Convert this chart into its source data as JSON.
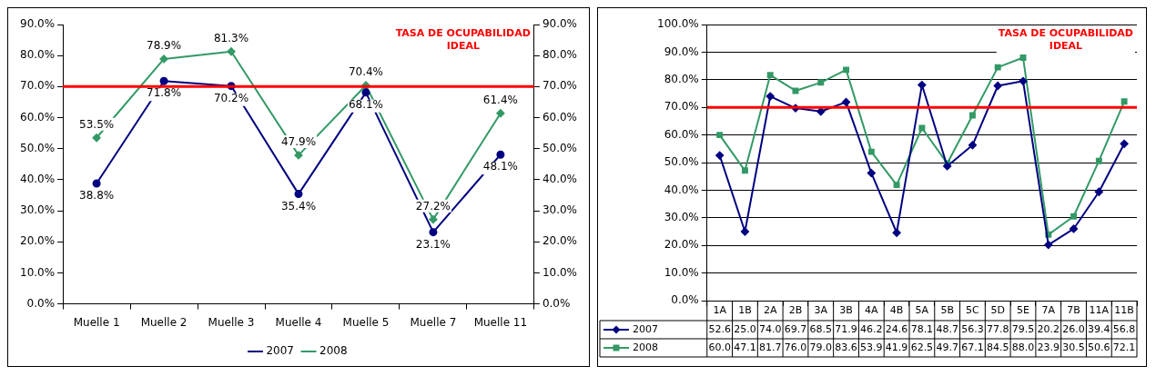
{
  "chart_data": [
    {
      "type": "line",
      "categories": [
        "Muelle 1",
        "Muelle 2",
        "Muelle 3",
        "Muelle 4",
        "Muelle 5",
        "Muelle 7",
        "Muelle 11"
      ],
      "series": [
        {
          "name": "2007",
          "color": "#000080",
          "marker": "circle",
          "values": [
            38.8,
            71.8,
            70.2,
            35.4,
            68.1,
            23.1,
            48.1
          ],
          "value_labels": [
            "38.8%",
            "71.8%",
            "70.2%",
            "35.4%",
            "68.1%",
            "23.1%",
            "48.1%"
          ]
        },
        {
          "name": "2008",
          "color": "#339966",
          "marker": "diamond",
          "values": [
            53.5,
            78.9,
            81.3,
            47.9,
            70.4,
            27.2,
            61.4
          ],
          "value_labels": [
            "53.5%",
            "78.9%",
            "81.3%",
            "47.9%",
            "70.4%",
            "27.2%",
            "61.4%"
          ]
        }
      ],
      "ylim": [
        0,
        90
      ],
      "yticks": [
        {
          "value": 0,
          "label": "0.0%"
        },
        {
          "value": 10,
          "label": "10.0%"
        },
        {
          "value": 20,
          "label": "20.0%"
        },
        {
          "value": 30,
          "label": "30.0%"
        },
        {
          "value": 40,
          "label": "40.0%"
        },
        {
          "value": 50,
          "label": "50.0%"
        },
        {
          "value": 60,
          "label": "60.0%"
        },
        {
          "value": 70,
          "label": "70.0%"
        },
        {
          "value": 80,
          "label": "80.0%"
        },
        {
          "value": 90,
          "label": "90.0%"
        }
      ],
      "y2lim": [
        0,
        90
      ],
      "y2ticks": [
        {
          "value": 0,
          "label": "0.0%"
        },
        {
          "value": 10,
          "label": "10.0%"
        },
        {
          "value": 20,
          "label": "20.0%"
        },
        {
          "value": 30,
          "label": "30.0%"
        },
        {
          "value": 40,
          "label": "40.0%"
        },
        {
          "value": 50,
          "label": "50.0%"
        },
        {
          "value": 60,
          "label": "60.0%"
        },
        {
          "value": 70,
          "label": "70.0%"
        },
        {
          "value": 80,
          "label": "80.0%"
        },
        {
          "value": 90,
          "label": "90.0%"
        }
      ],
      "ref_lines": [
        {
          "axis": "y",
          "value": 70,
          "label": "TASA DE OCUPABILIDAD IDEAL",
          "color": "#ff0000"
        }
      ],
      "grid": false,
      "legend": "bottom"
    },
    {
      "type": "line",
      "categories": [
        "1A",
        "1B",
        "2A",
        "2B",
        "3A",
        "3B",
        "4A",
        "4B",
        "5A",
        "5B",
        "5C",
        "5D",
        "5E",
        "7A",
        "7B",
        "11A",
        "11B"
      ],
      "series": [
        {
          "name": "2007",
          "color": "#000080",
          "marker": "diamond",
          "values": [
            52.6,
            25.0,
            74.0,
            69.7,
            68.5,
            71.9,
            46.2,
            24.6,
            78.1,
            48.7,
            56.3,
            77.8,
            79.5,
            20.2,
            26.0,
            39.4,
            56.8
          ],
          "value_labels": [
            "52.6",
            "25.0",
            "74.0",
            "69.7",
            "68.5",
            "71.9",
            "46.2",
            "24.6",
            "78.1",
            "48.7",
            "56.3",
            "77.8",
            "79.5",
            "20.2",
            "26.0",
            "39.4",
            "56.8"
          ]
        },
        {
          "name": "2008",
          "color": "#339966",
          "marker": "square",
          "values": [
            60.0,
            47.1,
            81.7,
            76.0,
            79.0,
            83.6,
            53.9,
            41.9,
            62.5,
            49.7,
            67.1,
            84.5,
            88.0,
            23.9,
            30.5,
            50.6,
            72.1
          ],
          "value_labels": [
            "60.0",
            "47.1",
            "81.7",
            "76.0",
            "79.0",
            "83.6",
            "53.9",
            "41.9",
            "62.5",
            "49.7",
            "67.1",
            "84.5",
            "88.0",
            "23.9",
            "30.5",
            "50.6",
            "72.1"
          ]
        }
      ],
      "ylim": [
        0,
        100
      ],
      "yticks": [
        {
          "value": 0,
          "label": "0.0%"
        },
        {
          "value": 10,
          "label": "10.0%"
        },
        {
          "value": 20,
          "label": "20.0%"
        },
        {
          "value": 30,
          "label": "30.0%"
        },
        {
          "value": 40,
          "label": "40.0%"
        },
        {
          "value": 50,
          "label": "50.0%"
        },
        {
          "value": 60,
          "label": "60.0%"
        },
        {
          "value": 70,
          "label": "70.0%"
        },
        {
          "value": 80,
          "label": "80.0%"
        },
        {
          "value": 90,
          "label": "90.0%"
        },
        {
          "value": 100,
          "label": "100.0%"
        }
      ],
      "ref_lines": [
        {
          "axis": "y",
          "value": 70,
          "label": "TASA DE OCUPABILIDAD IDEAL",
          "color": "#ff0000"
        }
      ],
      "grid": "y",
      "legend": "bottom",
      "data_labels": true
    }
  ]
}
